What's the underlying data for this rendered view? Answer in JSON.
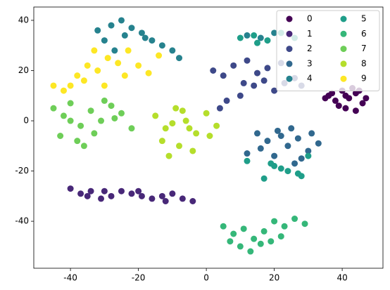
{
  "chart_data": {
    "type": "scatter",
    "xlim": [
      -50.8,
      52
    ],
    "ylim": [
      -58.7,
      45.3
    ],
    "xticks": [
      -40,
      -20,
      0,
      20,
      40
    ],
    "yticks": [
      -40,
      -20,
      0,
      20,
      40
    ],
    "grid": false,
    "legend": "upper right",
    "legend_columns": 2,
    "series": [
      {
        "name": "0",
        "color": "#440154",
        "x": [
          36,
          38,
          40,
          42,
          44,
          46,
          47,
          39,
          41,
          43,
          45,
          37,
          44,
          41,
          35
        ],
        "values": [
          10,
          8,
          12,
          9,
          11,
          7,
          9,
          6,
          5,
          13,
          12,
          11,
          4,
          10,
          9
        ]
      },
      {
        "name": "1",
        "color": "#482878",
        "x": [
          -40,
          -37,
          -34,
          -31,
          -28,
          -25,
          -22,
          -19,
          -16,
          -13,
          -10,
          -7,
          -4,
          -30,
          -20,
          -35,
          -12
        ],
        "values": [
          -27,
          -29,
          -28,
          -31,
          -30,
          -28,
          -29,
          -30,
          -31,
          -30,
          -29,
          -31,
          -32,
          -28,
          -28,
          -30,
          -32
        ]
      },
      {
        "name": "2",
        "color": "#3e4989",
        "x": [
          2,
          5,
          8,
          11,
          14,
          17,
          20,
          23,
          26,
          10,
          15,
          22,
          6,
          18,
          4,
          28,
          12
        ],
        "values": [
          20,
          18,
          22,
          15,
          14,
          16,
          12,
          15,
          17,
          10,
          19,
          23,
          8,
          21,
          5,
          14,
          24
        ]
      },
      {
        "name": "3",
        "color": "#31688e",
        "x": [
          15,
          18,
          21,
          24,
          27,
          30,
          33,
          20,
          25,
          28,
          16,
          22,
          31,
          12,
          26
        ],
        "values": [
          -5,
          -8,
          -4,
          -10,
          -7,
          -12,
          -9,
          -14,
          -3,
          -15,
          -11,
          -6,
          -5,
          -13,
          -17
        ]
      },
      {
        "name": "4",
        "color": "#26828e",
        "x": [
          -32,
          -28,
          -25,
          -22,
          -19,
          -16,
          -13,
          -10,
          -30,
          -24,
          -18,
          12,
          16,
          20,
          -8,
          -27
        ],
        "values": [
          36,
          38,
          40,
          37,
          35,
          32,
          30,
          28,
          32,
          34,
          33,
          34,
          33,
          35,
          25,
          28
        ]
      },
      {
        "name": "5",
        "color": "#1f9e89",
        "x": [
          10,
          14,
          18,
          22,
          26,
          15,
          20,
          24,
          28,
          12,
          17,
          22,
          27,
          30,
          19
        ],
        "values": [
          33,
          34,
          32,
          35,
          33,
          31,
          -18,
          -20,
          -22,
          -16,
          -23,
          -19,
          -21,
          -14,
          -17
        ]
      },
      {
        "name": "6",
        "color": "#35b779",
        "x": [
          5,
          8,
          11,
          14,
          17,
          20,
          23,
          26,
          29,
          10,
          16,
          22,
          13,
          19,
          7
        ],
        "values": [
          -42,
          -45,
          -43,
          -47,
          -44,
          -40,
          -42,
          -39,
          -41,
          -50,
          -49,
          -46,
          -52,
          -48,
          -48
        ]
      },
      {
        "name": "7",
        "color": "#6ece58",
        "x": [
          -45,
          -42,
          -40,
          -37,
          -34,
          -31,
          -28,
          -25,
          -22,
          -43,
          -38,
          -33,
          -27,
          -30,
          -40,
          -36
        ],
        "values": [
          5,
          2,
          7,
          -2,
          4,
          0,
          6,
          3,
          -3,
          -6,
          -8,
          -5,
          1,
          8,
          0,
          -10
        ]
      },
      {
        "name": "8",
        "color": "#b5de2b",
        "x": [
          -15,
          -12,
          -9,
          -6,
          -3,
          0,
          3,
          -13,
          -8,
          -4,
          -10,
          -7,
          1,
          -5,
          -11
        ],
        "values": [
          2,
          -3,
          5,
          0,
          -5,
          3,
          -2,
          -8,
          -10,
          -12,
          -1,
          4,
          -6,
          -3,
          -14
        ]
      },
      {
        "name": "9",
        "color": "#fde725",
        "x": [
          -45,
          -42,
          -38,
          -35,
          -32,
          -29,
          -26,
          -23,
          -20,
          -17,
          -14,
          -36,
          -30,
          -24,
          -40,
          -33
        ],
        "values": [
          14,
          12,
          18,
          22,
          20,
          25,
          23,
          28,
          22,
          19,
          26,
          16,
          14,
          18,
          14,
          28
        ]
      }
    ]
  }
}
